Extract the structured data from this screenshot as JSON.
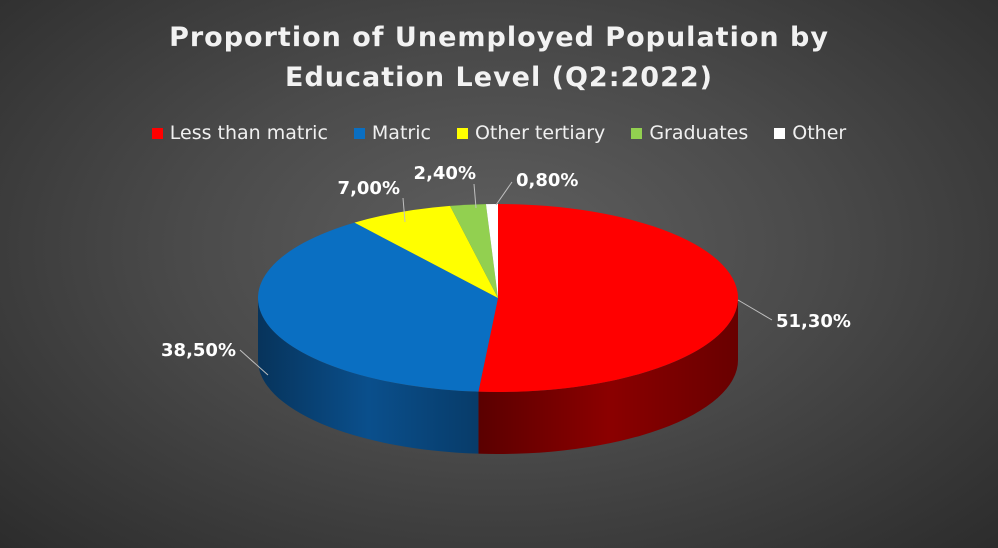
{
  "chart_data": {
    "type": "pie",
    "title_line1": "Proportion of Unemployed Population by",
    "title_line2": "Education Level (Q2:2022)",
    "legend_position": "top",
    "slices": [
      {
        "name": "Less than matric",
        "value": 51.3,
        "label": "51,30%",
        "color": "#ff0000",
        "side": "#8b0000"
      },
      {
        "name": "Matric",
        "value": 38.5,
        "label": "38,50%",
        "color": "#0a6fc2",
        "side": "#0a4f8c"
      },
      {
        "name": "Other tertiary",
        "value": 7.0,
        "label": "7,00%",
        "color": "#ffff00",
        "side": "#a8a800"
      },
      {
        "name": "Graduates",
        "value": 2.4,
        "label": "2,40%",
        "color": "#92d050",
        "side": "#5e8c2e"
      },
      {
        "name": "Other",
        "value": 0.8,
        "label": "0,80%",
        "color": "#ffffff",
        "side": "#bfbfbf"
      }
    ]
  }
}
